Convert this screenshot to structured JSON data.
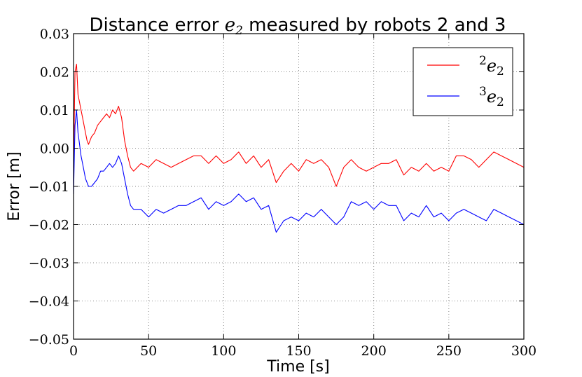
{
  "chart_data": {
    "type": "line",
    "title": "Distance error e2 measured by robots 2 and 3",
    "title_parts": {
      "prefix": "Distance error ",
      "symbol": "e",
      "subscript": "2",
      "suffix": " measured by robots 2 and 3"
    },
    "xlabel": "Time [s]",
    "ylabel": "Error [m]",
    "xlim": [
      0,
      300
    ],
    "ylim": [
      -0.05,
      0.03
    ],
    "xticks": [
      0,
      50,
      100,
      150,
      200,
      250,
      300
    ],
    "yticks": [
      0.03,
      0.02,
      0.01,
      0.0,
      -0.01,
      -0.02,
      -0.03,
      -0.04,
      -0.05
    ],
    "xtick_labels": [
      "0",
      "50",
      "100",
      "150",
      "200",
      "250",
      "300"
    ],
    "ytick_labels": [
      "0.03",
      "0.02",
      "0.01",
      "0.00",
      "−0.01",
      "−0.02",
      "−0.03",
      "−0.04",
      "−0.05"
    ],
    "grid": true,
    "legend_position": "top-right",
    "series": [
      {
        "name": "2e2",
        "label": {
          "sup": "2",
          "symbol": "e",
          "sub": "2"
        },
        "color": "#ff0000",
        "x": [
          0,
          1,
          2,
          3,
          4,
          5,
          6,
          7,
          8,
          9,
          10,
          12,
          14,
          16,
          18,
          20,
          22,
          24,
          26,
          28,
          30,
          32,
          34,
          36,
          38,
          40,
          45,
          50,
          55,
          60,
          65,
          70,
          75,
          80,
          85,
          90,
          95,
          100,
          105,
          110,
          115,
          120,
          125,
          130,
          135,
          140,
          145,
          150,
          155,
          160,
          165,
          170,
          175,
          180,
          185,
          190,
          195,
          200,
          205,
          210,
          215,
          220,
          225,
          230,
          235,
          240,
          245,
          250,
          255,
          260,
          265,
          270,
          275,
          280,
          285,
          290,
          295,
          300
        ],
        "y": [
          -0.005,
          0.02,
          0.022,
          0.014,
          0.012,
          0.01,
          0.008,
          0.006,
          0.004,
          0.002,
          0.001,
          0.003,
          0.004,
          0.006,
          0.007,
          0.008,
          0.009,
          0.008,
          0.01,
          0.009,
          0.011,
          0.008,
          0.002,
          -0.002,
          -0.005,
          -0.006,
          -0.004,
          -0.005,
          -0.003,
          -0.004,
          -0.005,
          -0.004,
          -0.003,
          -0.002,
          -0.002,
          -0.004,
          -0.002,
          -0.004,
          -0.003,
          -0.001,
          -0.004,
          -0.002,
          -0.005,
          -0.003,
          -0.009,
          -0.006,
          -0.004,
          -0.006,
          -0.003,
          -0.004,
          -0.003,
          -0.005,
          -0.01,
          -0.005,
          -0.003,
          -0.005,
          -0.006,
          -0.005,
          -0.004,
          -0.004,
          -0.003,
          -0.007,
          -0.005,
          -0.006,
          -0.004,
          -0.006,
          -0.005,
          -0.006,
          -0.002,
          -0.002,
          -0.003,
          -0.005,
          -0.003,
          -0.001,
          -0.002,
          -0.003,
          -0.004,
          -0.005
        ]
      },
      {
        "name": "3e2",
        "label": {
          "sup": "3",
          "symbol": "e",
          "sub": "2"
        },
        "color": "#0000ff",
        "x": [
          0,
          1,
          2,
          3,
          4,
          5,
          6,
          7,
          8,
          9,
          10,
          12,
          14,
          16,
          18,
          20,
          22,
          24,
          26,
          28,
          30,
          32,
          34,
          36,
          38,
          40,
          45,
          50,
          55,
          60,
          65,
          70,
          75,
          80,
          85,
          90,
          95,
          100,
          105,
          110,
          115,
          120,
          125,
          130,
          135,
          140,
          145,
          150,
          155,
          160,
          165,
          170,
          175,
          180,
          185,
          190,
          195,
          200,
          205,
          210,
          215,
          220,
          225,
          230,
          235,
          240,
          245,
          250,
          255,
          260,
          265,
          270,
          275,
          280,
          285,
          290,
          295,
          300
        ],
        "y": [
          -0.012,
          0.006,
          0.01,
          0.004,
          0.001,
          -0.002,
          -0.004,
          -0.006,
          -0.008,
          -0.009,
          -0.01,
          -0.01,
          -0.009,
          -0.008,
          -0.006,
          -0.006,
          -0.005,
          -0.004,
          -0.005,
          -0.004,
          -0.002,
          -0.004,
          -0.008,
          -0.012,
          -0.015,
          -0.016,
          -0.016,
          -0.018,
          -0.016,
          -0.017,
          -0.016,
          -0.015,
          -0.015,
          -0.014,
          -0.013,
          -0.016,
          -0.014,
          -0.015,
          -0.014,
          -0.012,
          -0.014,
          -0.013,
          -0.016,
          -0.015,
          -0.022,
          -0.019,
          -0.018,
          -0.019,
          -0.017,
          -0.018,
          -0.016,
          -0.018,
          -0.02,
          -0.018,
          -0.014,
          -0.015,
          -0.014,
          -0.016,
          -0.014,
          -0.015,
          -0.015,
          -0.019,
          -0.017,
          -0.018,
          -0.015,
          -0.018,
          -0.017,
          -0.019,
          -0.017,
          -0.016,
          -0.017,
          -0.018,
          -0.019,
          -0.016,
          -0.017,
          -0.018,
          -0.019,
          -0.02
        ]
      }
    ]
  }
}
